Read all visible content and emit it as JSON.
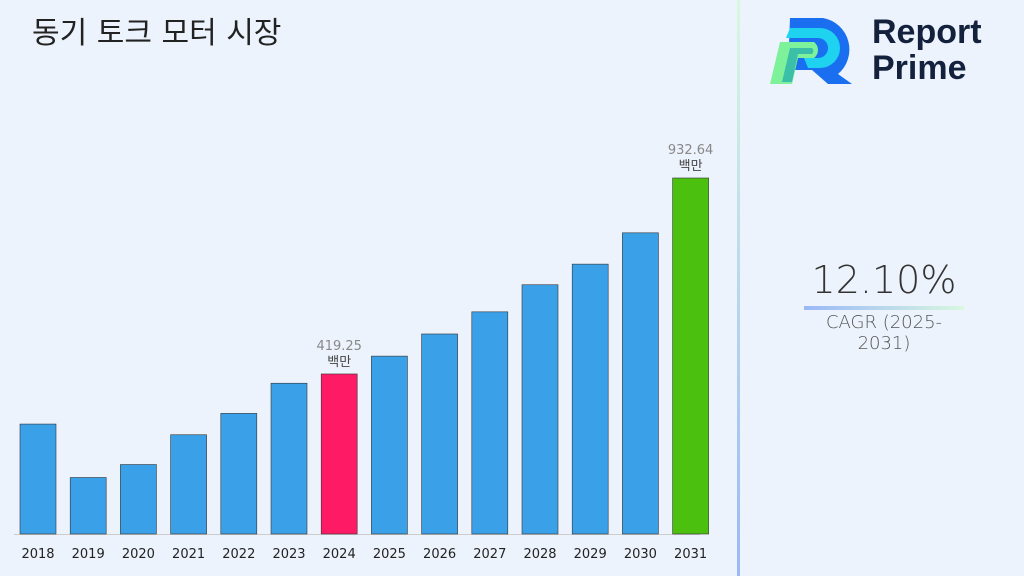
{
  "title": "동기 토크 모터 시장",
  "logo": {
    "line1": "Report",
    "line2": "Prime"
  },
  "cagr": {
    "value": "12.10%",
    "label": "CAGR (2025-2031)"
  },
  "colors": {
    "default": "#3aa0e8",
    "highlight_2024": "#ff1a66",
    "highlight_2031": "#4cc00f"
  },
  "chart_data": {
    "type": "bar",
    "title": "동기 토크 모터 시장",
    "categories": [
      "2018",
      "2019",
      "2020",
      "2021",
      "2022",
      "2023",
      "2024",
      "2025",
      "2026",
      "2027",
      "2028",
      "2029",
      "2030",
      "2031"
    ],
    "values": [
      288,
      148,
      182,
      260,
      316,
      395,
      419.25,
      466,
      524,
      582,
      653,
      707,
      789,
      932.64
    ],
    "ylim": [
      0,
      932.64
    ],
    "grid": false,
    "data_labels": [
      {
        "category": "2024",
        "value": "419.25",
        "unit": "백만"
      },
      {
        "category": "2031",
        "value": "932.64",
        "unit": "백만"
      }
    ]
  }
}
